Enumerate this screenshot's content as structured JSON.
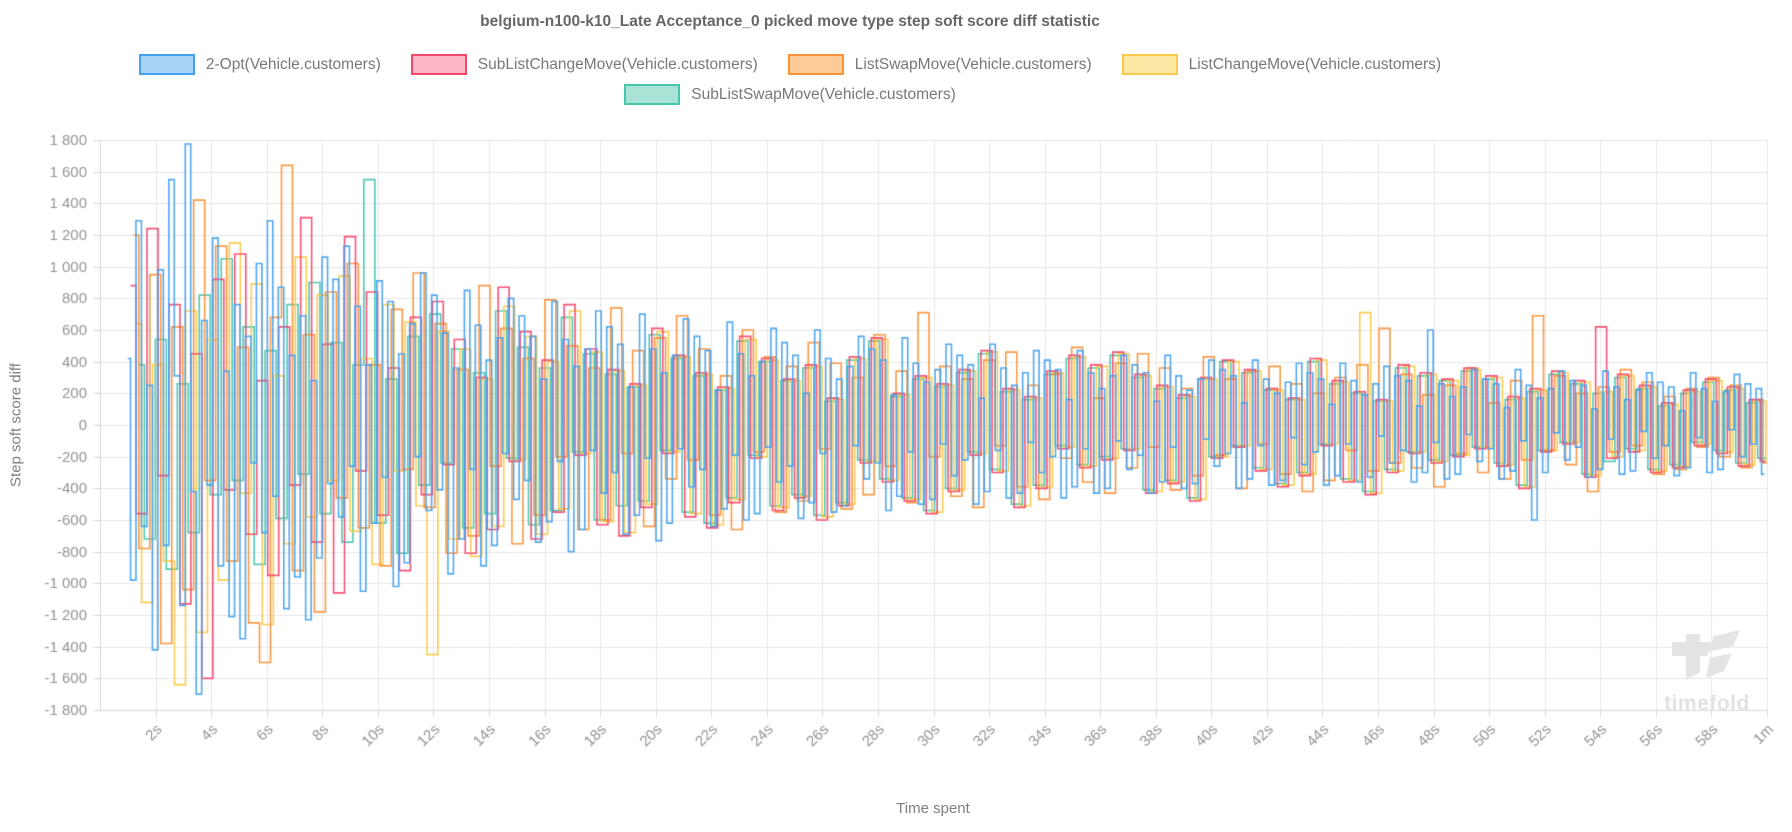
{
  "chart": {
    "title": "belgium-n100-k10_Late Acceptance_0 picked move type step soft score diff statistic",
    "watermark_text": "timefold"
  },
  "chart_data": {
    "type": "line",
    "stepped": true,
    "title": "belgium-n100-k10_Late Acceptance_0 picked move type step soft score diff statistic",
    "xlabel": "Time spent",
    "ylabel": "Step soft score diff",
    "xlim": [
      0,
      60
    ],
    "ylim": [
      -1800,
      1800
    ],
    "grid": true,
    "legend_position": "top",
    "x_tick_seconds": [
      2,
      4,
      6,
      8,
      10,
      12,
      14,
      16,
      18,
      20,
      22,
      24,
      26,
      28,
      30,
      32,
      34,
      36,
      38,
      40,
      42,
      44,
      46,
      48,
      50,
      52,
      54,
      56,
      58,
      60
    ],
    "x_tick_labels": [
      "2s",
      "4s",
      "6s",
      "8s",
      "10s",
      "12s",
      "14s",
      "16s",
      "18s",
      "20s",
      "22s",
      "24s",
      "26s",
      "28s",
      "30s",
      "32s",
      "34s",
      "36s",
      "38s",
      "40s",
      "42s",
      "44s",
      "46s",
      "48s",
      "50s",
      "52s",
      "54s",
      "56s",
      "58s",
      "1m"
    ],
    "y_tick_step": 200,
    "y_tick_labels": [
      "1 800",
      "1 600",
      "1 400",
      "1 200",
      "1 000",
      "800",
      "600",
      "400",
      "200",
      "0",
      "-200",
      "-400",
      "-600",
      "-800",
      "-1 000",
      "-1 200",
      "-1 400",
      "-1 600",
      "-1 800"
    ],
    "grid_color": "#e7e7e7",
    "axis_color": "#d7d7d7",
    "tick_label_color": "#949494",
    "series": [
      {
        "name": "2-Opt(Vehicle.customers)",
        "color": "#45A1EE",
        "fill": "#A9D3F7",
        "x_start": 1.0,
        "x_step": 0.197,
        "y": [
          420,
          -980,
          1290,
          -640,
          250,
          -1420,
          980,
          -760,
          1550,
          310,
          -1140,
          1775,
          -420,
          -1700,
          660,
          -380,
          1180,
          -890,
          340,
          -1210,
          760,
          -1350,
          560,
          -240,
          1020,
          -680,
          1290,
          -450,
          870,
          -1160,
          440,
          -960,
          690,
          -1230,
          280,
          -840,
          1060,
          -370,
          920,
          -580,
          1130,
          -260,
          750,
          -1050,
          380,
          -620,
          910,
          -330,
          780,
          -1020,
          450,
          -870,
          640,
          -200,
          960,
          -540,
          820,
          -410,
          580,
          -940,
          360,
          -720,
          850,
          -280,
          630,
          -890,
          410,
          -760,
          550,
          -180,
          800,
          -470,
          690,
          -350,
          560,
          -740,
          290,
          -610,
          780,
          -230,
          540,
          -800,
          370,
          -660,
          480,
          -160,
          720,
          -430,
          620,
          -300,
          510,
          -690,
          240,
          -570,
          700,
          -210,
          480,
          -730,
          330,
          -620,
          440,
          -150,
          670,
          -390,
          560,
          -280,
          470,
          -640,
          220,
          -530,
          650,
          -190,
          450,
          -600,
          310,
          -560,
          400,
          -140,
          610,
          -360,
          520,
          -260,
          440,
          -590,
          200,
          -490,
          600,
          -180,
          420,
          -550,
          290,
          -510,
          370,
          -130,
          560,
          -340,
          480,
          -240,
          410,
          -540,
          190,
          -450,
          550,
          -170,
          390,
          -500,
          270,
          -470,
          350,
          -120,
          510,
          -320,
          440,
          -220,
          380,
          -500,
          170,
          -420,
          510,
          -160,
          360,
          -460,
          250,
          -430,
          330,
          -110,
          470,
          -300,
          410,
          -200,
          350,
          -460,
          160,
          -390,
          470,
          -150,
          330,
          -430,
          230,
          -400,
          310,
          -100,
          440,
          -280,
          380,
          -190,
          330,
          -430,
          150,
          -360,
          440,
          -140,
          310,
          -400,
          220,
          -370,
          290,
          -90,
          410,
          -260,
          350,
          -180,
          310,
          -400,
          140,
          -340,
          410,
          -130,
          290,
          -380,
          200,
          -350,
          270,
          -80,
          390,
          -250,
          330,
          -170,
          290,
          -380,
          130,
          -320,
          390,
          -120,
          280,
          -360,
          190,
          -330,
          260,
          -70,
          370,
          -240,
          310,
          -160,
          280,
          -360,
          120,
          -300,
          600,
          -110,
          260,
          -340,
          180,
          -310,
          240,
          -60,
          350,
          -230,
          290,
          -150,
          260,
          -340,
          110,
          -290,
          350,
          -100,
          250,
          -600,
          170,
          -300,
          230,
          -50,
          340,
          -220,
          280,
          -140,
          250,
          -330,
          100,
          -280,
          340,
          -90,
          240,
          -310,
          160,
          -290,
          220,
          -40,
          330,
          -210,
          270,
          -130,
          240,
          -320,
          90,
          -270,
          330,
          -80,
          230,
          -300,
          150,
          -280,
          210,
          -30,
          320,
          -200,
          260,
          -120,
          230,
          -310
        ]
      },
      {
        "name": "SubListChangeMove(Vehicle.customers)",
        "color": "#F4476C",
        "fill": "#FBB6C6",
        "x_start": 1.1,
        "x_step": 0.395,
        "y": [
          880,
          -560,
          1240,
          -320,
          760,
          -1130,
          450,
          -1600,
          920,
          -410,
          1080,
          -690,
          280,
          -950,
          620,
          -380,
          1310,
          -740,
          510,
          -1060,
          1190,
          -290,
          840,
          -570,
          360,
          -920,
          680,
          -440,
          780,
          -250,
          540,
          -810,
          300,
          -660,
          870,
          -230,
          590,
          -720,
          410,
          -550,
          760,
          -190,
          480,
          -630,
          350,
          -700,
          260,
          -520,
          610,
          -180,
          440,
          -580,
          330,
          -650,
          240,
          -490,
          560,
          -210,
          420,
          -540,
          290,
          -460,
          380,
          -600,
          170,
          -510,
          430,
          -240,
          550,
          -360,
          200,
          -480,
          310,
          -560,
          260,
          -420,
          350,
          -190,
          470,
          -300,
          230,
          -520,
          180,
          -400,
          340,
          -150,
          440,
          -270,
          380,
          -220,
          460,
          -160,
          320,
          -430,
          250,
          -370,
          190,
          -480,
          300,
          -210,
          410,
          -140,
          350,
          -290,
          230,
          -390,
          170,
          -320,
          420,
          -130,
          280,
          -360,
          210,
          -440,
          160,
          -300,
          380,
          -180,
          330,
          -240,
          290,
          -200,
          360,
          -150,
          310,
          -260,
          180,
          -400,
          230,
          -170,
          340,
          -120,
          280,
          -330,
          620,
          -210,
          320,
          -170,
          250,
          -300,
          140,
          -270,
          220,
          -130,
          290,
          -180,
          240,
          -260,
          160,
          -230
        ]
      },
      {
        "name": "ListSwapMove(Vehicle.customers)",
        "color": "#F99237",
        "fill": "#FCCB97",
        "x_start": 1.2,
        "x_step": 0.395,
        "y": [
          1200,
          -780,
          950,
          -1380,
          620,
          -1040,
          1420,
          -350,
          1130,
          -860,
          490,
          -1250,
          -1500,
          680,
          1640,
          -920,
          570,
          -1180,
          840,
          -460,
          1020,
          -650,
          380,
          -890,
          730,
          -280,
          960,
          -520,
          640,
          -810,
          350,
          -700,
          880,
          -260,
          610,
          -750,
          420,
          -570,
          790,
          -200,
          500,
          -660,
          360,
          -600,
          740,
          -180,
          470,
          -640,
          550,
          -340,
          690,
          -220,
          480,
          -570,
          310,
          -660,
          600,
          -170,
          430,
          -550,
          370,
          -480,
          520,
          -150,
          390,
          -530,
          300,
          -440,
          570,
          -260,
          340,
          -490,
          710,
          -200,
          370,
          -450,
          290,
          -520,
          410,
          -130,
          460,
          -390,
          250,
          -470,
          320,
          -210,
          490,
          -360,
          170,
          -430,
          390,
          -270,
          450,
          -140,
          360,
          -410,
          230,
          -320,
          430,
          -190,
          290,
          -400,
          340,
          -120,
          370,
          -310,
          260,
          -420,
          200,
          -350,
          300,
          -160,
          380,
          -290,
          610,
          -240,
          320,
          -270,
          190,
          -390,
          250,
          -180,
          360,
          -300,
          140,
          -340,
          280,
          -220,
          690,
          -160,
          310,
          -250,
          200,
          -420,
          240,
          -170,
          350,
          -130,
          270,
          -310,
          180,
          -280,
          230,
          -140,
          300,
          -200,
          250,
          -270,
          160,
          -240
        ]
      },
      {
        "name": "ListChangeMove(Vehicle.customers)",
        "color": "#FBC948",
        "fill": "#FCE9A6",
        "x_start": 1.3,
        "x_step": 0.395,
        "y": [
          640,
          -1120,
          380,
          -860,
          -1640,
          720,
          -1310,
          540,
          -980,
          1150,
          -430,
          890,
          -1260,
          310,
          -750,
          1060,
          -580,
          820,
          -350,
          940,
          -670,
          420,
          -880,
          760,
          -290,
          650,
          -510,
          -1450,
          590,
          -720,
          480,
          -830,
          290,
          -640,
          750,
          -220,
          560,
          -690,
          400,
          -530,
          720,
          -180,
          460,
          -610,
          340,
          -680,
          250,
          -500,
          590,
          -170,
          430,
          -560,
          320,
          -630,
          230,
          -470,
          540,
          -200,
          410,
          -520,
          280,
          -450,
          370,
          -580,
          160,
          -500,
          420,
          -230,
          540,
          -350,
          190,
          -470,
          300,
          -550,
          250,
          -410,
          340,
          -180,
          460,
          -290,
          220,
          -510,
          170,
          -390,
          330,
          -140,
          430,
          -260,
          370,
          -210,
          450,
          -150,
          310,
          -420,
          240,
          -360,
          180,
          -470,
          290,
          -200,
          400,
          -130,
          340,
          -280,
          220,
          -380,
          160,
          -310,
          410,
          -120,
          270,
          -350,
          710,
          -430,
          150,
          -290,
          370,
          -170,
          320,
          -230,
          280,
          -190,
          350,
          -140,
          300,
          -250,
          170,
          -390,
          220,
          -160,
          330,
          -110,
          270,
          -320,
          210,
          -200,
          310,
          -160,
          240,
          -290,
          130,
          -260,
          210,
          -120,
          280,
          -170,
          230,
          -250,
          150,
          -220
        ]
      },
      {
        "name": "SubListSwapMove(Vehicle.customers)",
        "color": "#45C5AE",
        "fill": "#A8E3D6",
        "x_start": 1.4,
        "x_step": 0.395,
        "y": [
          380,
          -720,
          540,
          -910,
          260,
          -680,
          820,
          -440,
          1050,
          -350,
          620,
          -880,
          470,
          -590,
          760,
          -310,
          900,
          -560,
          520,
          -740,
          380,
          1550,
          -620,
          290,
          -810,
          560,
          -380,
          700,
          -240,
          480,
          -650,
          330,
          -560,
          720,
          -210,
          490,
          -630,
          360,
          -540,
          680,
          -170,
          450,
          -600,
          320,
          -510,
          240,
          -480,
          570,
          -160,
          420,
          -550,
          310,
          -620,
          220,
          -460,
          530,
          -190,
          400,
          -510,
          280,
          -440,
          360,
          -570,
          150,
          -490,
          410,
          -220,
          530,
          -340,
          180,
          -460,
          290,
          -540,
          240,
          -400,
          330,
          -170,
          450,
          -280,
          210,
          -500,
          160,
          -380,
          320,
          -130,
          420,
          -250,
          360,
          -200,
          440,
          -150,
          300,
          -410,
          230,
          -350,
          170,
          -460,
          290,
          -200,
          400,
          -130,
          330,
          -270,
          220,
          -370,
          160,
          -300,
          400,
          -120,
          260,
          -340,
          200,
          -420,
          150,
          -280,
          360,
          -170,
          310,
          -220,
          280,
          -190,
          340,
          -140,
          290,
          -240,
          160,
          -380,
          210,
          -160,
          320,
          -110,
          260,
          -310,
          200,
          -230,
          300,
          -150,
          230,
          -280,
          120,
          -250,
          200,
          -110,
          270,
          -160,
          220,
          -240,
          140,
          -210,
          190
        ]
      }
    ]
  }
}
